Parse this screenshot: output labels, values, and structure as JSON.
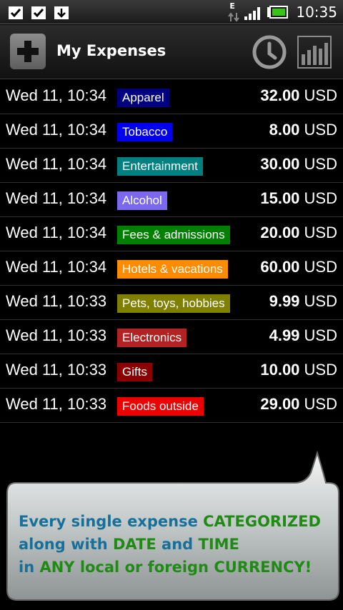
{
  "status_bar": {
    "time": "10:35",
    "network_label": "E",
    "left_icons": [
      "checkbox-icon",
      "checkbox-icon",
      "download-icon"
    ],
    "right_icons": [
      "data-arrows-icon",
      "signal-icon",
      "battery-icon"
    ]
  },
  "header": {
    "title": "My Expenses",
    "add_icon": "plus-icon",
    "history_icon": "clock-icon",
    "stats_icon": "bar-chart-icon"
  },
  "expenses": [
    {
      "date": "Wed 11, 10:34",
      "category": "Apparel",
      "color": "#000080",
      "amount": "32.00",
      "currency": "USD"
    },
    {
      "date": "Wed 11, 10:34",
      "category": "Tobacco",
      "color": "#0000ee",
      "amount": "8.00",
      "currency": "USD"
    },
    {
      "date": "Wed 11, 10:34",
      "category": "Entertainment",
      "color": "#008080",
      "amount": "30.00",
      "currency": "USD"
    },
    {
      "date": "Wed 11, 10:34",
      "category": "Alcohol",
      "color": "#7b68ee",
      "amount": "15.00",
      "currency": "USD"
    },
    {
      "date": "Wed 11, 10:34",
      "category": "Fees & admissions",
      "color": "#008000",
      "amount": "20.00",
      "currency": "USD"
    },
    {
      "date": "Wed 11, 10:34",
      "category": "Hotels & vacations",
      "color": "#ff8c00",
      "amount": "60.00",
      "currency": "USD"
    },
    {
      "date": "Wed 11, 10:33",
      "category": "Pets, toys, hobbies",
      "color": "#808000",
      "amount": "9.99",
      "currency": "USD"
    },
    {
      "date": "Wed 11, 10:33",
      "category": "Electronics",
      "color": "#b22222",
      "amount": "4.99",
      "currency": "USD"
    },
    {
      "date": "Wed 11, 10:33",
      "category": "Gifts",
      "color": "#8b0000",
      "amount": "10.00",
      "currency": "USD"
    },
    {
      "date": "Wed 11, 10:33",
      "category": "Foods outside",
      "color": "#ee0000",
      "amount": "29.00",
      "currency": "USD"
    }
  ],
  "callout": {
    "line1_a": "Every single expense ",
    "line1_b": "CATEGORIZED",
    "line2_a": "along with ",
    "line2_b": "DATE",
    "line2_c": " and ",
    "line2_d": "TIME",
    "line3_a": "in ",
    "line3_b": "ANY local or foreign ",
    "line3_c": "CURRENCY!",
    "colors": {
      "teal": "#16709a",
      "green": "#1f8a14"
    }
  }
}
